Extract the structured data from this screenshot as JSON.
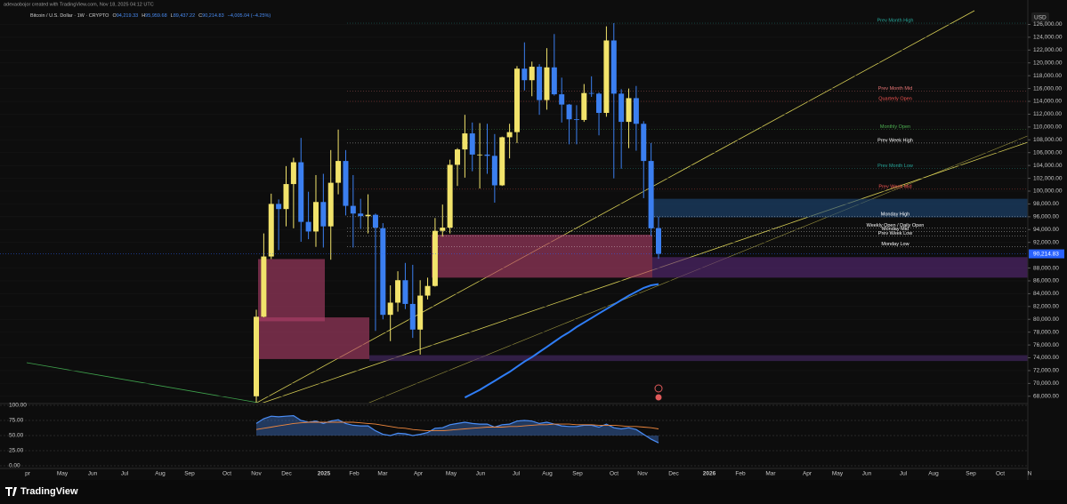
{
  "header": {
    "watermark": "adexaobojor created with TradingView.com, Nov 18, 2025 04:12 UTC",
    "symbol": "Bitcoin / U.S. Dollar · 1W · CRYPTO",
    "ohlc": [
      {
        "key": "O",
        "value": "94,219.33"
      },
      {
        "key": "H",
        "value": "95,959.68"
      },
      {
        "key": "L",
        "value": "89,437.22"
      },
      {
        "key": "C",
        "value": "90,214.83"
      }
    ],
    "change": "−4,005.04 (−4.25%)"
  },
  "brand": "TradingView",
  "chart_data": {
    "type": "candlestick",
    "currency": "USD",
    "up_color": "#f2e36b",
    "down_color": "#3b7ff0",
    "open": [
      68000,
      80400,
      89800,
      98000,
      97200,
      101100,
      104500,
      95200,
      93700,
      98300,
      94500,
      101300,
      104700,
      97700,
      96500,
      96100,
      96300,
      94200,
      80700,
      82600,
      86100,
      82400,
      78400,
      83700,
      85200,
      93800,
      94300,
      104100,
      106500,
      109000,
      105700,
      105700,
      105500,
      100900,
      108400,
      109200,
      119100,
      117300,
      119400,
      114200,
      119300,
      115100,
      113500,
      111200,
      111100,
      115300,
      115200,
      112200,
      123500,
      115200,
      110800,
      114500,
      110500,
      104700,
      94219.33
    ],
    "high": [
      81500,
      93400,
      99600,
      98700,
      103900,
      105200,
      108300,
      99900,
      102500,
      102700,
      106400,
      109600,
      106400,
      102500,
      98800,
      99500,
      96500,
      95000,
      85300,
      87500,
      88800,
      88500,
      86100,
      86500,
      95800,
      97900,
      104900,
      106700,
      111900,
      110700,
      110600,
      110500,
      108900,
      108500,
      110500,
      119500,
      123200,
      120200,
      119800,
      122300,
      124500,
      117700,
      113600,
      113400,
      116700,
      117900,
      115400,
      125700,
      126200,
      115900,
      116000,
      116400,
      110900,
      107500,
      95959.68
    ],
    "low": [
      66800,
      80300,
      89400,
      90800,
      94500,
      94200,
      92100,
      92500,
      91300,
      91200,
      89300,
      99500,
      96200,
      91200,
      94100,
      93400,
      78200,
      80000,
      76600,
      81200,
      81600,
      77100,
      74500,
      83100,
      85100,
      92900,
      93400,
      100800,
      102100,
      103100,
      100400,
      102700,
      98200,
      100800,
      105100,
      107500,
      115700,
      114800,
      111900,
      112700,
      114900,
      110700,
      107300,
      107300,
      110800,
      114700,
      108700,
      111600,
      102000,
      103500,
      106700,
      106300,
      98900,
      93000,
      89437.22
    ],
    "close": [
      80400,
      89800,
      98000,
      97200,
      101100,
      104500,
      95200,
      93700,
      98300,
      94500,
      101300,
      104700,
      97700,
      96500,
      96100,
      96300,
      94300,
      80700,
      82600,
      86100,
      82400,
      78400,
      83700,
      85200,
      93800,
      94300,
      104100,
      106500,
      109000,
      105700,
      105700,
      105500,
      100900,
      108400,
      109200,
      119100,
      117300,
      119400,
      114200,
      119300,
      115100,
      113500,
      111200,
      111100,
      115300,
      115200,
      112200,
      123500,
      115200,
      110800,
      114500,
      110500,
      104700,
      94200,
      90214.83
    ],
    "ma": {
      "color": "#2f7df6",
      "values": [
        null,
        null,
        null,
        null,
        null,
        null,
        null,
        null,
        null,
        null,
        null,
        null,
        null,
        null,
        null,
        null,
        null,
        null,
        null,
        null,
        null,
        null,
        null,
        null,
        null,
        null,
        null,
        null,
        67800,
        68400,
        69000,
        69700,
        70400,
        71100,
        71800,
        72600,
        73400,
        74100,
        74900,
        75700,
        76500,
        77300,
        78000,
        78800,
        79500,
        80200,
        80900,
        81600,
        82300,
        83000,
        83700,
        84300,
        84900,
        85300,
        85500
      ]
    },
    "ylim": [
      67000,
      128700
    ],
    "yticks": [
      {
        "value": 68000,
        "label": "68,000.00"
      },
      {
        "value": 70000,
        "label": "70,000.00"
      },
      {
        "value": 72000,
        "label": "72,000.00"
      },
      {
        "value": 74000,
        "label": "74,000.00"
      },
      {
        "value": 76000,
        "label": "76,000.00"
      },
      {
        "value": 78000,
        "label": "78,000.00"
      },
      {
        "value": 80000,
        "label": "80,000.00"
      },
      {
        "value": 82000,
        "label": "82,000.00"
      },
      {
        "value": 84000,
        "label": "84,000.00"
      },
      {
        "value": 86000,
        "label": "86,000.00"
      },
      {
        "value": 88000,
        "label": "88,000.00"
      },
      {
        "value": 92000,
        "label": "92,000.00"
      },
      {
        "value": 94000,
        "label": "94,000.00"
      },
      {
        "value": 96000,
        "label": "96,000.00"
      },
      {
        "value": 98000,
        "label": "98,000.00"
      },
      {
        "value": 100000,
        "label": "100,000.00"
      },
      {
        "value": 102000,
        "label": "102,000.00"
      },
      {
        "value": 104000,
        "label": "104,000.00"
      },
      {
        "value": 106000,
        "label": "106,000.00"
      },
      {
        "value": 108000,
        "label": "108,000.00"
      },
      {
        "value": 110000,
        "label": "110,000.00"
      },
      {
        "value": 112000,
        "label": "112,000.00"
      },
      {
        "value": 114000,
        "label": "114,000.00"
      },
      {
        "value": 116000,
        "label": "116,000.00"
      },
      {
        "value": 118000,
        "label": "118,000.00"
      },
      {
        "value": 120000,
        "label": "120,000.00"
      },
      {
        "value": 122000,
        "label": "122,000.00"
      },
      {
        "value": 124000,
        "label": "124,000.00"
      },
      {
        "value": 126000,
        "label": "126,000.00"
      }
    ],
    "last_price": {
      "value": 90214.83,
      "label": "90,214.83",
      "color": "#2962ff"
    },
    "levels": [
      {
        "name": "Prev Month High",
        "value": 126200,
        "color": "#26a69a"
      },
      {
        "name": "Prev Month Mid",
        "value": 115600,
        "color": "#e57373"
      },
      {
        "name": "Quarterly Open",
        "value": 114000,
        "color": "#ef5350"
      },
      {
        "name": "Monthly Open",
        "value": 109600,
        "color": "#4caf50"
      },
      {
        "name": "Prev Week High",
        "value": 107500,
        "color": "#ffffff"
      },
      {
        "name": "Prev Month Low",
        "value": 103500,
        "color": "#26a69a"
      },
      {
        "name": "Prev Week Mid",
        "value": 100300,
        "color": "#ef5350"
      },
      {
        "name": "Monday High",
        "value": 96000,
        "color": "#ffffff"
      },
      {
        "name": "Weekly Open / Daily Open",
        "value": 94219,
        "color": "#ffffff"
      },
      {
        "name": "Monday Mid",
        "value": 93700,
        "color": "#ffffff"
      },
      {
        "name": "Prev Week Low",
        "value": 93000,
        "color": "#ffffff"
      },
      {
        "name": "Monday Low",
        "value": 91300,
        "color": "#ffffff"
      }
    ],
    "zones": [
      {
        "top": 93200,
        "bottom": 86500,
        "color": "#b0406a"
      },
      {
        "top": 89700,
        "bottom": 86500,
        "color": "#5a2a7a"
      },
      {
        "top": 98800,
        "bottom": 95900,
        "color": "#1e4a7a"
      },
      {
        "top": 89400,
        "bottom": 79700,
        "color": "#b0406a"
      },
      {
        "top": 80300,
        "bottom": 73800,
        "color": "#b0406a"
      },
      {
        "top": 74400,
        "bottom": 73500,
        "color": "#4a2a6a"
      }
    ],
    "xaxis_labels": [
      "pr",
      "May",
      "Jun",
      "Jul",
      "Aug",
      "Sep",
      "Oct",
      "Nov",
      "Dec",
      "2025",
      "Feb",
      "Mar",
      "Apr",
      "May",
      "Jun",
      "Jul",
      "Aug",
      "Sep",
      "Oct",
      "Nov",
      "Dec",
      "2026",
      "Feb",
      "Mar",
      "Apr",
      "May",
      "Jun",
      "Jul",
      "Aug",
      "Sep",
      "Oct",
      "N"
    ],
    "oscillator": {
      "ylim": [
        0,
        100
      ],
      "yticks": [
        {
          "value": 0,
          "label": "0.00"
        },
        {
          "value": 25,
          "label": "25.00"
        },
        {
          "value": 50,
          "label": "50.00"
        },
        {
          "value": 75,
          "label": "75.00"
        },
        {
          "value": 100,
          "label": "100.00"
        }
      ],
      "series": [
        {
          "color": "#4a8df5",
          "values": [
            70,
            78,
            82,
            81,
            82,
            83,
            75,
            72,
            74,
            70,
            74,
            76,
            70,
            67,
            66,
            66,
            58,
            52,
            50,
            54,
            53,
            50,
            52,
            55,
            62,
            63,
            68,
            70,
            72,
            70,
            69,
            69,
            64,
            68,
            69,
            74,
            75,
            74,
            70,
            72,
            69,
            66,
            65,
            65,
            67,
            67,
            64,
            69,
            63,
            61,
            63,
            60,
            52,
            44,
            38
          ]
        },
        {
          "color": "#f0883e",
          "values": [
            60,
            62,
            64,
            66,
            68,
            70,
            71,
            72,
            72,
            72,
            72,
            72,
            72,
            72,
            71,
            70,
            69,
            67,
            65,
            63,
            62,
            60,
            59,
            58,
            58,
            58,
            59,
            60,
            61,
            62,
            63,
            64,
            64,
            64,
            65,
            65,
            66,
            67,
            68,
            68,
            69,
            69,
            69,
            68,
            68,
            68,
            67,
            67,
            67,
            66,
            65,
            65,
            64,
            63,
            61
          ]
        }
      ]
    }
  }
}
